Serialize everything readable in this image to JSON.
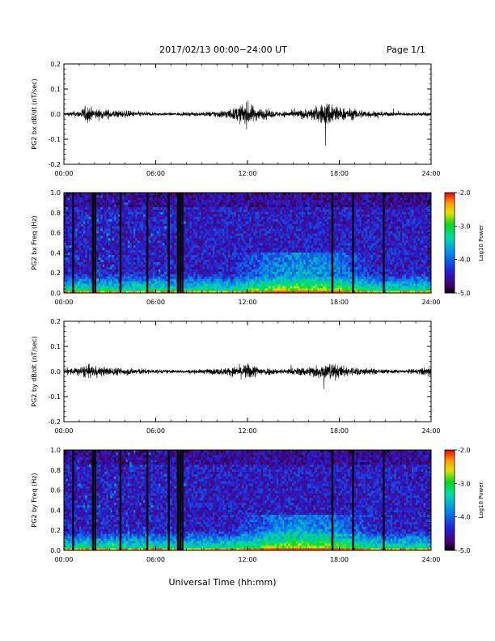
{
  "header": {
    "title": "2017/02/13  00:00−24:00 UT",
    "page": "Page 1/1"
  },
  "footer": {
    "xlabel": "Universal Time (hh:mm)"
  },
  "chart_data": [
    {
      "type": "line",
      "ylabel": "PG2 bx dB/dt (nT/sec)",
      "xlabel": "",
      "xlim": [
        0,
        24
      ],
      "ylim": [
        -0.2,
        0.2
      ],
      "x_ticks": [
        "00:00",
        "06:00",
        "12:00",
        "18:00",
        "24:00"
      ],
      "y_ticks": [
        "-0.2",
        "-0.1",
        "0.0",
        "0.1",
        "0.2"
      ],
      "envelope_x_hours": [
        0,
        1,
        1.5,
        2,
        3,
        4,
        5,
        6,
        7,
        8,
        9,
        10,
        11,
        11.5,
        12,
        12.5,
        13,
        14,
        15,
        16,
        17,
        17.5,
        18,
        19,
        20,
        21,
        22,
        23,
        24
      ],
      "envelope_amplitude": [
        0.01,
        0.02,
        0.05,
        0.03,
        0.025,
        0.02,
        0.015,
        0.01,
        0.008,
        0.01,
        0.012,
        0.02,
        0.03,
        0.05,
        0.07,
        0.04,
        0.03,
        0.015,
        0.02,
        0.03,
        0.06,
        0.08,
        0.04,
        0.03,
        0.02,
        0.012,
        0.01,
        0.01,
        0.012
      ],
      "notable_spike": {
        "x_hour": 17.1,
        "y": -0.125
      }
    },
    {
      "type": "heatmap",
      "ylabel": "PG2 bx Freq (Hz)",
      "colorbar_label": "Log10 Power",
      "xlim": [
        0,
        24
      ],
      "ylim": [
        0,
        1.0
      ],
      "clim": [
        -5.0,
        -2.0
      ],
      "x_ticks": [
        "00:00",
        "06:00",
        "12:00",
        "18:00",
        "24:00"
      ],
      "y_ticks": [
        "0.0",
        "0.2",
        "0.4",
        "0.6",
        "0.8",
        "1.0"
      ],
      "colorbar_ticks": [
        "-2.0",
        "-3.0",
        "-4.0",
        "-5.0"
      ],
      "data_gap_hours": [
        0.6,
        1.9,
        2.05,
        3.7,
        5.45,
        6.85,
        7.45,
        7.6,
        7.75,
        17.55,
        18.9,
        20.9
      ],
      "enhanced_band": {
        "x_start_hour": 11.0,
        "x_end_hour": 20.5,
        "freq_low_hz": 0.2,
        "freq_high_hz": 0.4
      }
    },
    {
      "type": "line",
      "ylabel": "PG2 by dB/dt (nT/sec)",
      "xlabel": "",
      "xlim": [
        0,
        24
      ],
      "ylim": [
        -0.2,
        0.2
      ],
      "x_ticks": [
        "00:00",
        "06:00",
        "12:00",
        "18:00",
        "24:00"
      ],
      "y_ticks": [
        "-0.2",
        "-0.1",
        "0.0",
        "0.1",
        "0.2"
      ],
      "envelope_x_hours": [
        0,
        1,
        1.5,
        2,
        3,
        4,
        5,
        6,
        7,
        8,
        9,
        10,
        11,
        11.5,
        12,
        12.5,
        13,
        14,
        15,
        16,
        17,
        17.5,
        18,
        19,
        20,
        21,
        22,
        23,
        24
      ],
      "envelope_amplitude": [
        0.015,
        0.025,
        0.04,
        0.03,
        0.025,
        0.02,
        0.018,
        0.012,
        0.01,
        0.01,
        0.012,
        0.018,
        0.025,
        0.035,
        0.045,
        0.035,
        0.025,
        0.015,
        0.02,
        0.03,
        0.045,
        0.05,
        0.035,
        0.025,
        0.018,
        0.012,
        0.01,
        0.015,
        0.03
      ],
      "notable_spike": {
        "x_hour": 17.0,
        "y": -0.07
      }
    },
    {
      "type": "heatmap",
      "ylabel": "PG2 by Freq (Hz)",
      "colorbar_label": "Log10 Power",
      "xlim": [
        0,
        24
      ],
      "ylim": [
        0,
        1.0
      ],
      "clim": [
        -5.0,
        -2.0
      ],
      "x_ticks": [
        "00:00",
        "06:00",
        "12:00",
        "18:00",
        "24:00"
      ],
      "y_ticks": [
        "0.0",
        "0.2",
        "0.4",
        "0.6",
        "0.8",
        "1.0"
      ],
      "colorbar_ticks": [
        "-2.0",
        "-3.0",
        "-4.0",
        "-5.0"
      ],
      "data_gap_hours": [
        0.6,
        1.9,
        2.05,
        3.7,
        5.45,
        6.85,
        7.45,
        7.6,
        7.75,
        17.55,
        18.9,
        20.9
      ],
      "enhanced_band": {
        "x_start_hour": 11.0,
        "x_end_hour": 20.5,
        "freq_low_hz": 0.15,
        "freq_high_hz": 0.35
      }
    }
  ]
}
